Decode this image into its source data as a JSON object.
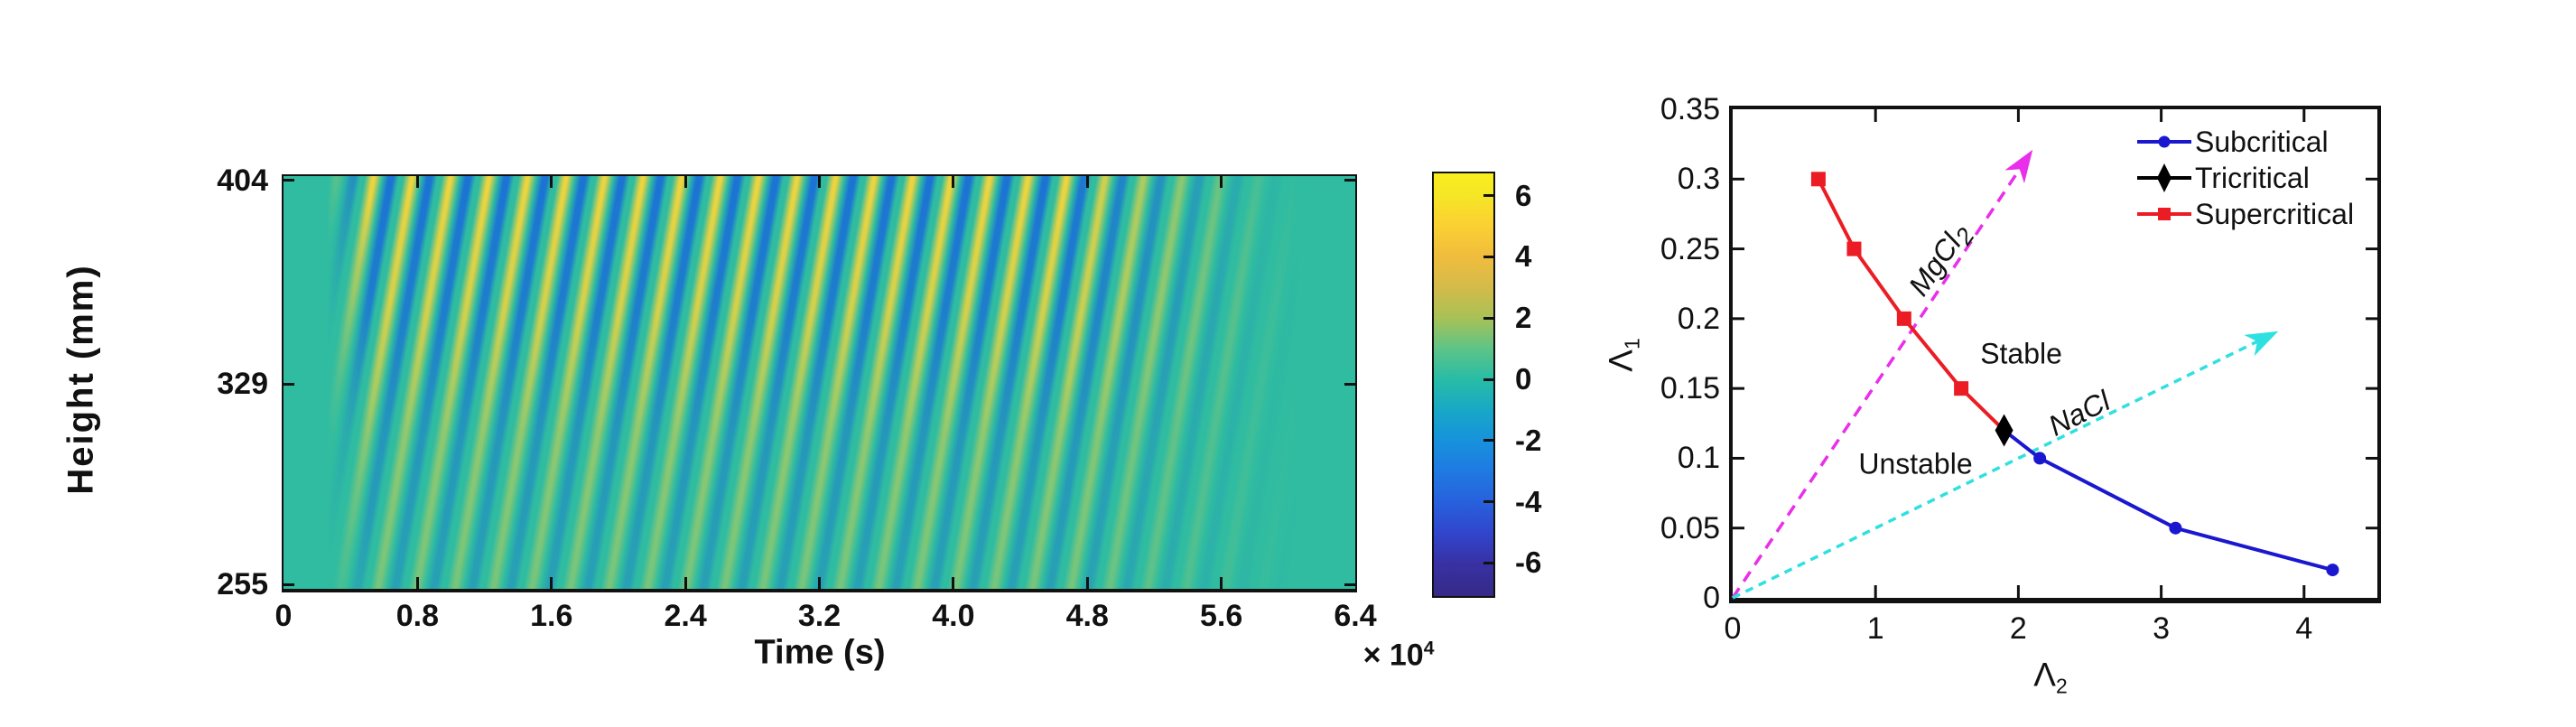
{
  "palette": {
    "heatmap_background_teal": "#2fbca1",
    "stripe_yellow": "#eed43d",
    "stripe_blue": "#1b73d4",
    "axis_black": "#111111",
    "subcritical_blue": "#1a17cf",
    "supercritical_red": "#ec1c24",
    "tricritical_black": "#000000",
    "mgcl2_arrow_magenta": "#e92fe9",
    "nacl_arrow_cyan": "#2fe0e0",
    "colorbar_stops": [
      [
        "0%",
        "#f9ef1d"
      ],
      [
        "5.3%",
        "#f5e626"
      ],
      [
        "12%",
        "#fbd132"
      ],
      [
        "19.7%",
        "#f0bc3d"
      ],
      [
        "27%",
        "#d3bb4a"
      ],
      [
        "34.2%",
        "#a8c156"
      ],
      [
        "41.4%",
        "#5ec487"
      ],
      [
        "48.7%",
        "#28bca6"
      ],
      [
        "56%",
        "#18a8c6"
      ],
      [
        "63.2%",
        "#1792dc"
      ],
      [
        "70.4%",
        "#1f7ae2"
      ],
      [
        "77.7%",
        "#2761dd"
      ],
      [
        "85%",
        "#3146cd"
      ],
      [
        "92.2%",
        "#3831a4"
      ],
      [
        "100%",
        "#352a87"
      ]
    ]
  },
  "chart_data": [
    {
      "id": "wave-kymograph",
      "type": "heatmap",
      "xlabel": "Time (s)",
      "x_unit_multiplier": "× 10⁴",
      "x_mult_base": "× 10",
      "x_mult_exp": "4",
      "x_ticks": [
        0,
        0.8,
        1.6,
        2.4,
        3.2,
        4.0,
        4.8,
        5.6,
        6.4
      ],
      "x_tick_labels": [
        "0",
        "0.8",
        "1.6",
        "2.4",
        "3.2",
        "4.0",
        "4.8",
        "5.6",
        "6.4"
      ],
      "xlim": [
        0,
        6.4
      ],
      "ylabel": "Height (mm)",
      "y_ticks": [
        404,
        329,
        255
      ],
      "y_tick_labels": [
        "404",
        "329",
        "255"
      ],
      "ylim": [
        254,
        405
      ],
      "colorbar": {
        "colormap": "parula",
        "ticks": [
          6,
          4,
          2,
          0,
          -2,
          -4,
          -6
        ],
        "tick_labels": [
          "6",
          "4",
          "2",
          "0",
          "-2",
          "-4",
          "-6"
        ],
        "vmin": -6.8,
        "vmax": 6.8
      },
      "pattern": {
        "description": "Alternating yellow/blue internal-wave stripes on a teal background; stripes tilt ~10° from vertical (top leaning to later time), begin near t=0.3×10⁴ s, strongest amplitude (±6) near the top (404 mm), decaying toward 255 mm, fading out after t≈5×10⁴ s",
        "onset_time_s": 3000,
        "end_time_s": 58000,
        "stripe_period_s": 2200,
        "peak_amplitude": 6,
        "amplitude_decays_toward_bottom": true,
        "stripe_tilt_deg_from_vertical": 10
      }
    },
    {
      "id": "stability-diagram",
      "type": "line",
      "xlabel": "Λ₂",
      "xlabel_base": "Λ",
      "xlabel_sub": "2",
      "ylabel": "Λ₁",
      "ylabel_base": "Λ",
      "ylabel_sub": "1",
      "xlim": [
        0,
        4.51
      ],
      "ylim": [
        0,
        0.35
      ],
      "x_ticks": [
        0,
        1,
        2,
        3,
        4
      ],
      "x_tick_labels": [
        "0",
        "1",
        "2",
        "3",
        "4"
      ],
      "y_ticks": [
        0,
        0.05,
        0.1,
        0.15,
        0.2,
        0.25,
        0.3,
        0.35
      ],
      "y_tick_labels": [
        "0",
        "0.05",
        "0.1",
        "0.15",
        "0.2",
        "0.25",
        "0.3",
        "0.35"
      ],
      "grid": false,
      "legend_position": "top-right",
      "series": [
        {
          "name": "Subcritical",
          "color": "#1a17cf",
          "marker": "circle",
          "line_points": [
            [
              1.9,
              0.12
            ],
            [
              2.15,
              0.1
            ],
            [
              3.1,
              0.05
            ],
            [
              4.2,
              0.02
            ]
          ],
          "marker_points": [
            [
              2.15,
              0.1
            ],
            [
              3.1,
              0.05
            ],
            [
              4.2,
              0.02
            ]
          ]
        },
        {
          "name": "Tricritical",
          "color": "#000000",
          "marker": "diamond",
          "line_points": [],
          "marker_points": [
            [
              1.9,
              0.12
            ]
          ]
        },
        {
          "name": "Supercritical",
          "color": "#ec1c24",
          "marker": "square",
          "line_points": [
            [
              0.6,
              0.3
            ],
            [
              0.85,
              0.25
            ],
            [
              1.2,
              0.2
            ],
            [
              1.6,
              0.15
            ],
            [
              1.9,
              0.12
            ]
          ],
          "marker_points": [
            [
              0.6,
              0.3
            ],
            [
              0.85,
              0.25
            ],
            [
              1.2,
              0.2
            ],
            [
              1.6,
              0.15
            ]
          ]
        }
      ],
      "arrows": [
        {
          "name": "MgCl2-direction",
          "color": "#e92fe9",
          "dash": "13 9",
          "from": [
            0,
            0
          ],
          "to": [
            2.1,
            0.321
          ]
        },
        {
          "name": "NaCl-direction",
          "color": "#2fe0e0",
          "dash": "9 7",
          "from": [
            0,
            0
          ],
          "to": [
            3.82,
            0.191
          ]
        }
      ],
      "annotations": [
        {
          "text": "MgCl",
          "sub": "2",
          "x": 1.46,
          "y": 0.241,
          "rotation": -55,
          "italic": true
        },
        {
          "text": "NaCl",
          "sub": "",
          "x": 2.43,
          "y": 0.132,
          "rotation": -27,
          "italic": true
        },
        {
          "text": "Stable",
          "sub": "",
          "x": 2.02,
          "y": 0.175,
          "rotation": 0,
          "italic": false
        },
        {
          "text": "Unstable",
          "sub": "",
          "x": 1.28,
          "y": 0.096,
          "rotation": 0,
          "italic": false
        }
      ]
    }
  ]
}
